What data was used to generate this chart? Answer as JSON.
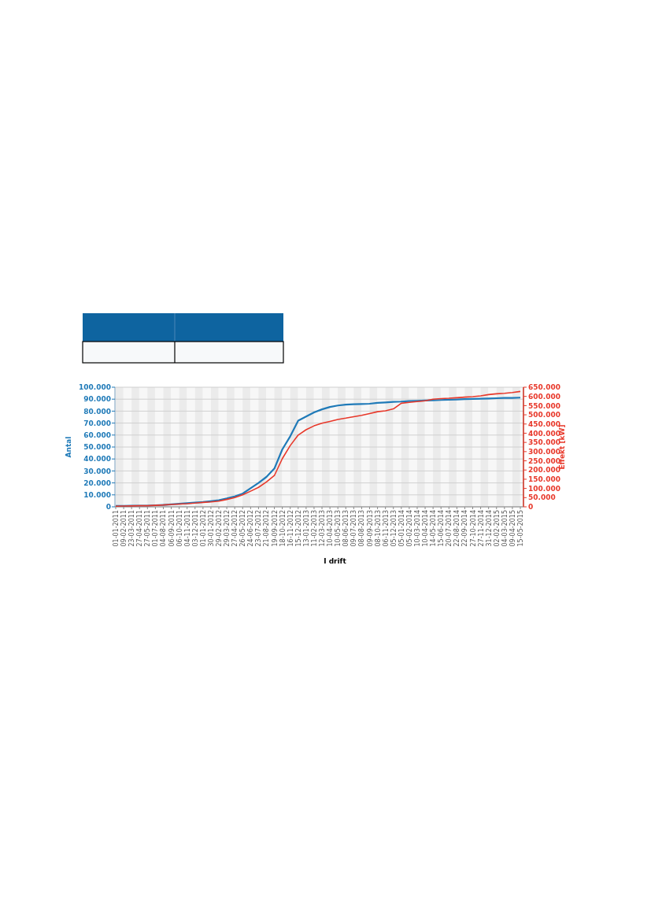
{
  "chart_data": {
    "type": "line",
    "xlabel": "I drift",
    "ylabel": "Antal",
    "y2label": "Effekt [kW]",
    "categories": [
      "01-01-2011",
      "09-02-2011",
      "23-03-2011",
      "27-04-2011",
      "27-05-2011",
      "01-07-2011",
      "04-08-2011",
      "06-09-2011",
      "06-10-2011",
      "04-11-2011",
      "03-12-2011",
      "01-01-2012",
      "30-01-2012",
      "29-02-2012",
      "29-03-2012",
      "27-04-2012",
      "26-05-2012",
      "24-06-2012",
      "23-07-2012",
      "21-08-2012",
      "19-09-2012",
      "18-10-2012",
      "16-11-2012",
      "15-12-2012",
      "13-01-2013",
      "11-02-2013",
      "12-03-2013",
      "10-04-2013",
      "10-05-2013",
      "08-06-2013",
      "09-07-2013",
      "08-08-2013",
      "09-09-2013",
      "08-10-2013",
      "06-11-2013",
      "05-12-2013",
      "05-01-2014",
      "05-02-2014",
      "10-03-2014",
      "10-04-2014",
      "14-05-2014",
      "15-06-2014",
      "20-07-2014",
      "22-08-2014",
      "22-09-2014",
      "27-10-2014",
      "27-11-2014",
      "31-12-2014",
      "02-02-2015",
      "04-03-2015",
      "09-04-2015",
      "15-05-2015"
    ],
    "series": [
      {
        "color": "#1f7ab8",
        "values": [
          700,
          800,
          900,
          1000,
          1000,
          1300,
          1600,
          2000,
          2500,
          3000,
          3500,
          4000,
          4700,
          5500,
          7000,
          8700,
          11000,
          15500,
          20000,
          25000,
          32000,
          48000,
          59000,
          72000,
          75500,
          79000,
          81500,
          83500,
          84700,
          85400,
          85800,
          86000,
          86200,
          86900,
          87300,
          87800,
          88000,
          88400,
          88600,
          88900,
          89100,
          89300,
          89500,
          89700,
          90000,
          90200,
          90400,
          90600,
          90800,
          91000,
          91000,
          91300
        ]
      },
      {
        "color": "#e8382a",
        "axis": "y2",
        "values": [
          3000,
          4000,
          5000,
          6000,
          6000,
          8000,
          10000,
          13000,
          15000,
          17000,
          20000,
          24000,
          27000,
          31000,
          40000,
          50000,
          65000,
          85000,
          106000,
          135000,
          170000,
          262000,
          333000,
          390000,
          419000,
          440000,
          454000,
          464000,
          475000,
          482000,
          490000,
          497000,
          507000,
          517000,
          522000,
          532000,
          563000,
          568000,
          572000,
          576000,
          585000,
          588000,
          590000,
          593000,
          596000,
          599000,
          603000,
          610000,
          614000,
          617000,
          621000,
          627000
        ]
      }
    ],
    "ylim": [
      0,
      100000
    ],
    "yticks": [
      {
        "value": 0,
        "label": "0"
      },
      {
        "value": 10000,
        "label": "10.000"
      },
      {
        "value": 20000,
        "label": "20.000"
      },
      {
        "value": 30000,
        "label": "30.000"
      },
      {
        "value": 40000,
        "label": "40.000"
      },
      {
        "value": 50000,
        "label": "50.000"
      },
      {
        "value": 60000,
        "label": "60.000"
      },
      {
        "value": 70000,
        "label": "70.000"
      },
      {
        "value": 80000,
        "label": "80.000"
      },
      {
        "value": 90000,
        "label": "90.000"
      },
      {
        "value": 100000,
        "label": "100.000"
      }
    ],
    "y2lim": [
      0,
      650000
    ],
    "y2ticks": [
      {
        "value": 0,
        "label": "0"
      },
      {
        "value": 50000,
        "label": "50.000"
      },
      {
        "value": 100000,
        "label": "100.000"
      },
      {
        "value": 150000,
        "label": "150.000"
      },
      {
        "value": 200000,
        "label": "200.000"
      },
      {
        "value": 250000,
        "label": "250.000"
      },
      {
        "value": 300000,
        "label": "300.000"
      },
      {
        "value": 350000,
        "label": "350.000"
      },
      {
        "value": 400000,
        "label": "400.000"
      },
      {
        "value": 450000,
        "label": "450.000"
      },
      {
        "value": 500000,
        "label": "500.000"
      },
      {
        "value": 550000,
        "label": "550.000"
      },
      {
        "value": 600000,
        "label": "600.000"
      },
      {
        "value": 650000,
        "label": "650.000"
      }
    ],
    "grid": "y",
    "marker": "none",
    "line_style": "solid"
  }
}
